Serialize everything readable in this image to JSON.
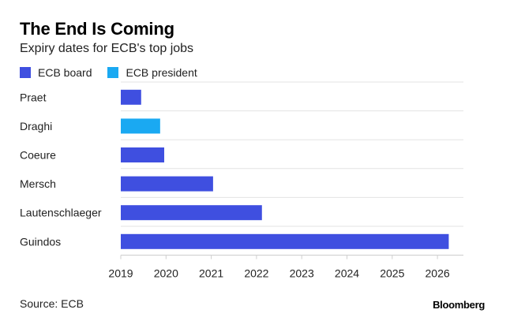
{
  "title": "The End Is Coming",
  "subtitle": "Expiry dates for ECB's top jobs",
  "source": "Source: ECB",
  "logo": "Bloomberg",
  "legend": [
    {
      "label": "ECB board",
      "color": "#3f4fe0"
    },
    {
      "label": "ECB president",
      "color": "#1aa9f2"
    }
  ],
  "chart_data": {
    "type": "bar",
    "orientation": "horizontal",
    "title": "The End Is Coming",
    "subtitle": "Expiry dates for ECB's top jobs",
    "xlabel": "",
    "ylabel": "",
    "xlim": [
      2019,
      2026.4
    ],
    "xticks": [
      "2019",
      "2020",
      "2021",
      "2022",
      "2023",
      "2024",
      "2025",
      "2026"
    ],
    "grid": true,
    "legend_position": "top-left",
    "categories": [
      "Praet",
      "Draghi",
      "Coeure",
      "Mersch",
      "Lautenschlaeger",
      "Guindos"
    ],
    "values": [
      2019.45,
      2019.87,
      2019.96,
      2021.04,
      2022.12,
      2026.25
    ],
    "series_membership": [
      "ECB board",
      "ECB president",
      "ECB board",
      "ECB board",
      "ECB board",
      "ECB board"
    ]
  }
}
